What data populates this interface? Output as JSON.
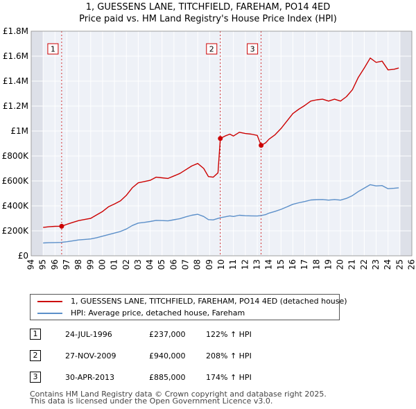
{
  "chart_data": {
    "type": "line",
    "title": "1, GUESSENS LANE, TITCHFIELD, FAREHAM, PO14 4ED",
    "subtitle": "Price paid vs. HM Land Registry's House Price Index (HPI)",
    "xlabel": "",
    "ylabel": "",
    "xlim": [
      1994,
      2026
    ],
    "ylim": [
      0,
      1800000
    ],
    "x_ticks": [
      1994,
      1995,
      1996,
      1997,
      1998,
      1999,
      2000,
      2001,
      2002,
      2003,
      2004,
      2005,
      2006,
      2007,
      2008,
      2009,
      2010,
      2011,
      2012,
      2013,
      2014,
      2015,
      2016,
      2017,
      2018,
      2019,
      2020,
      2021,
      2022,
      2023,
      2024,
      2025,
      2026
    ],
    "y_ticks": [
      {
        "value": 0,
        "label": "£0"
      },
      {
        "value": 200000,
        "label": "£200K"
      },
      {
        "value": 400000,
        "label": "£400K"
      },
      {
        "value": 600000,
        "label": "£600K"
      },
      {
        "value": 800000,
        "label": "£800K"
      },
      {
        "value": 1000000,
        "label": "£1M"
      },
      {
        "value": 1200000,
        "label": "£1.2M"
      },
      {
        "value": 1400000,
        "label": "£1.4M"
      },
      {
        "value": 1600000,
        "label": "£1.6M"
      },
      {
        "value": 1800000,
        "label": "£1.8M"
      }
    ],
    "data_range_start": 1995.0,
    "data_range_end": 2025.0,
    "series": [
      {
        "name": "1, GUESSENS LANE, TITCHFIELD, FAREHAM, PO14 4ED (detached house)",
        "color": "#cc0000",
        "points": [
          [
            1995.0,
            227000
          ],
          [
            1995.5,
            233000
          ],
          [
            1996.0,
            236000
          ],
          [
            1996.56,
            237000
          ],
          [
            1997.0,
            252000
          ],
          [
            1997.5,
            268000
          ],
          [
            1998.0,
            282000
          ],
          [
            1998.5,
            291000
          ],
          [
            1999.0,
            300000
          ],
          [
            1999.5,
            328000
          ],
          [
            2000.0,
            355000
          ],
          [
            2000.5,
            393000
          ],
          [
            2001.0,
            415000
          ],
          [
            2001.5,
            440000
          ],
          [
            2002.0,
            485000
          ],
          [
            2002.5,
            545000
          ],
          [
            2003.0,
            585000
          ],
          [
            2003.5,
            595000
          ],
          [
            2004.0,
            605000
          ],
          [
            2004.5,
            630000
          ],
          [
            2005.0,
            625000
          ],
          [
            2005.5,
            620000
          ],
          [
            2006.0,
            640000
          ],
          [
            2006.5,
            660000
          ],
          [
            2007.0,
            690000
          ],
          [
            2007.5,
            720000
          ],
          [
            2008.0,
            740000
          ],
          [
            2008.5,
            700000
          ],
          [
            2008.9,
            635000
          ],
          [
            2009.3,
            630000
          ],
          [
            2009.7,
            665000
          ],
          [
            2009.9,
            940000
          ],
          [
            2010.3,
            960000
          ],
          [
            2010.7,
            975000
          ],
          [
            2011.0,
            960000
          ],
          [
            2011.5,
            990000
          ],
          [
            2012.0,
            980000
          ],
          [
            2012.5,
            975000
          ],
          [
            2013.0,
            965000
          ],
          [
            2013.33,
            885000
          ],
          [
            2013.7,
            905000
          ],
          [
            2014.0,
            935000
          ],
          [
            2014.5,
            970000
          ],
          [
            2015.0,
            1020000
          ],
          [
            2015.5,
            1080000
          ],
          [
            2016.0,
            1140000
          ],
          [
            2016.5,
            1175000
          ],
          [
            2017.0,
            1205000
          ],
          [
            2017.5,
            1240000
          ],
          [
            2018.0,
            1250000
          ],
          [
            2018.5,
            1255000
          ],
          [
            2019.0,
            1240000
          ],
          [
            2019.5,
            1255000
          ],
          [
            2020.0,
            1240000
          ],
          [
            2020.5,
            1275000
          ],
          [
            2021.0,
            1330000
          ],
          [
            2021.5,
            1430000
          ],
          [
            2022.0,
            1505000
          ],
          [
            2022.5,
            1585000
          ],
          [
            2023.0,
            1550000
          ],
          [
            2023.5,
            1560000
          ],
          [
            2024.0,
            1490000
          ],
          [
            2024.5,
            1495000
          ],
          [
            2024.9,
            1505000
          ]
        ]
      },
      {
        "name": "HPI: Average price, detached house, Fareham",
        "color": "#5b8fc9",
        "points": [
          [
            1995.0,
            103000
          ],
          [
            1995.5,
            105000
          ],
          [
            1996.0,
            106000
          ],
          [
            1996.5,
            107000
          ],
          [
            1997.0,
            113000
          ],
          [
            1997.5,
            120000
          ],
          [
            1998.0,
            127000
          ],
          [
            1998.5,
            131000
          ],
          [
            1999.0,
            135000
          ],
          [
            1999.5,
            145000
          ],
          [
            2000.0,
            157000
          ],
          [
            2000.5,
            170000
          ],
          [
            2001.0,
            182000
          ],
          [
            2001.5,
            195000
          ],
          [
            2002.0,
            215000
          ],
          [
            2002.5,
            243000
          ],
          [
            2003.0,
            262000
          ],
          [
            2003.5,
            268000
          ],
          [
            2004.0,
            275000
          ],
          [
            2004.5,
            284000
          ],
          [
            2005.0,
            282000
          ],
          [
            2005.5,
            280000
          ],
          [
            2006.0,
            289000
          ],
          [
            2006.5,
            298000
          ],
          [
            2007.0,
            312000
          ],
          [
            2007.5,
            325000
          ],
          [
            2008.0,
            333000
          ],
          [
            2008.5,
            315000
          ],
          [
            2008.9,
            290000
          ],
          [
            2009.3,
            288000
          ],
          [
            2009.9,
            305000
          ],
          [
            2010.3,
            312000
          ],
          [
            2010.7,
            320000
          ],
          [
            2011.0,
            315000
          ],
          [
            2011.5,
            325000
          ],
          [
            2012.0,
            321000
          ],
          [
            2012.5,
            320000
          ],
          [
            2013.0,
            319000
          ],
          [
            2013.33,
            323000
          ],
          [
            2013.7,
            330000
          ],
          [
            2014.0,
            342000
          ],
          [
            2014.5,
            356000
          ],
          [
            2015.0,
            372000
          ],
          [
            2015.5,
            392000
          ],
          [
            2016.0,
            413000
          ],
          [
            2016.5,
            425000
          ],
          [
            2017.0,
            435000
          ],
          [
            2017.5,
            447000
          ],
          [
            2018.0,
            450000
          ],
          [
            2018.5,
            451000
          ],
          [
            2019.0,
            446000
          ],
          [
            2019.5,
            451000
          ],
          [
            2020.0,
            446000
          ],
          [
            2020.5,
            460000
          ],
          [
            2021.0,
            482000
          ],
          [
            2021.5,
            515000
          ],
          [
            2022.0,
            542000
          ],
          [
            2022.5,
            570000
          ],
          [
            2023.0,
            560000
          ],
          [
            2023.5,
            563000
          ],
          [
            2024.0,
            538000
          ],
          [
            2024.5,
            541000
          ],
          [
            2024.9,
            545000
          ]
        ]
      }
    ],
    "annotations": [
      {
        "label": "1",
        "x": 1996.56,
        "price": 237000
      },
      {
        "label": "2",
        "x": 2009.9,
        "price": 940000
      },
      {
        "label": "3",
        "x": 2013.33,
        "price": 885000
      }
    ]
  },
  "legend": {
    "property_label": "1, GUESSENS LANE, TITCHFIELD, FAREHAM, PO14 4ED (detached house)",
    "hpi_label": "HPI: Average price, detached house, Fareham"
  },
  "transactions": [
    {
      "num": "1",
      "date": "24-JUL-1996",
      "price": "£237,000",
      "hpi": "122% ↑ HPI"
    },
    {
      "num": "2",
      "date": "27-NOV-2009",
      "price": "£940,000",
      "hpi": "208% ↑ HPI"
    },
    {
      "num": "3",
      "date": "30-APR-2013",
      "price": "£885,000",
      "hpi": "174% ↑ HPI"
    }
  ],
  "footer": {
    "line1": "Contains HM Land Registry data © Crown copyright and database right 2025.",
    "line2": "This data is licensed under the Open Government Licence v3.0."
  }
}
